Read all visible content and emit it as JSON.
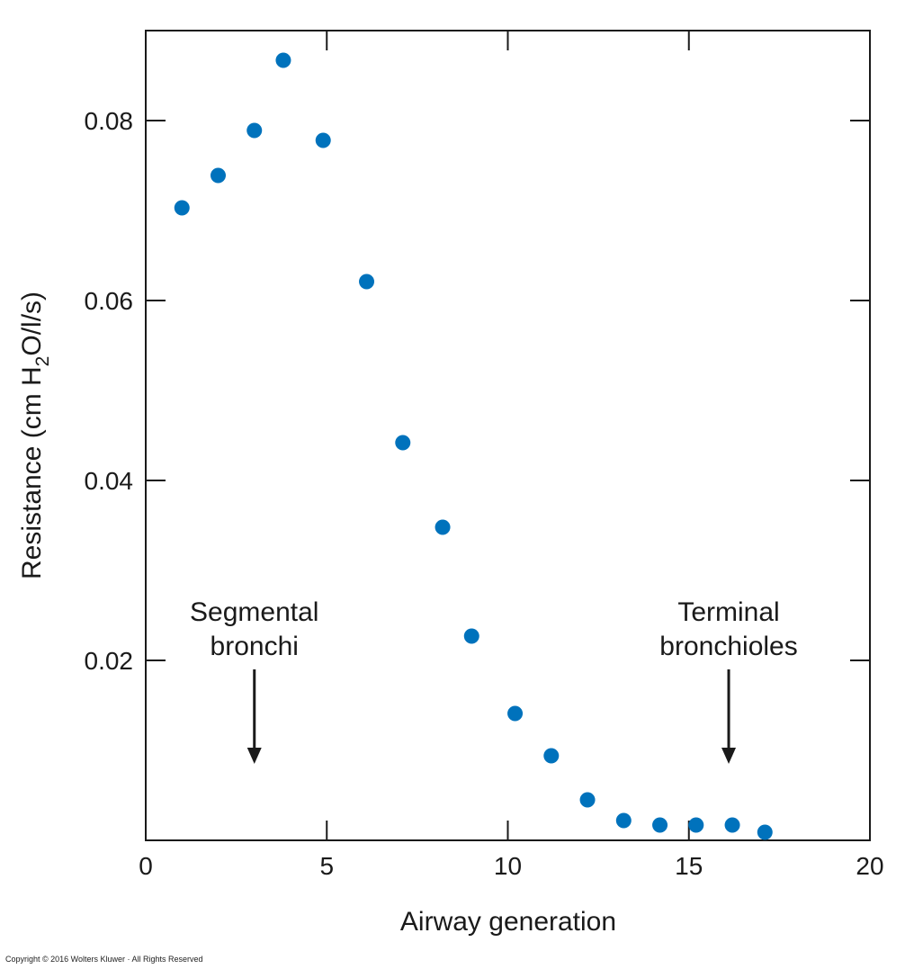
{
  "chart_data": {
    "type": "scatter",
    "xlabel": "Airway generation",
    "ylabel": {
      "before_sub": "Resistance (cm H",
      "sub": "2",
      "after_sub": "O/l/s)"
    },
    "xlim": [
      0,
      20
    ],
    "ylim": [
      0,
      0.09
    ],
    "xticks": [
      0,
      5,
      10,
      15,
      20
    ],
    "xtick_labels": [
      "0",
      "5",
      "10",
      "15",
      "20"
    ],
    "yticks": [
      0.02,
      0.04,
      0.06,
      0.08
    ],
    "ytick_labels": [
      "0.02",
      "0.04",
      "0.06",
      "0.08"
    ],
    "grid": false,
    "marker_color": "#0072bc",
    "points": [
      {
        "x": 1,
        "y": 0.0703
      },
      {
        "x": 2,
        "y": 0.0739
      },
      {
        "x": 3,
        "y": 0.0789
      },
      {
        "x": 3.8,
        "y": 0.0867
      },
      {
        "x": 4.9,
        "y": 0.0778
      },
      {
        "x": 6.1,
        "y": 0.0621
      },
      {
        "x": 7.1,
        "y": 0.0442
      },
      {
        "x": 8.2,
        "y": 0.0348
      },
      {
        "x": 9,
        "y": 0.0227
      },
      {
        "x": 10.2,
        "y": 0.0141
      },
      {
        "x": 11.2,
        "y": 0.0094
      },
      {
        "x": 12.2,
        "y": 0.0045
      },
      {
        "x": 13.2,
        "y": 0.0022
      },
      {
        "x": 14.2,
        "y": 0.0017
      },
      {
        "x": 15.2,
        "y": 0.0017
      },
      {
        "x": 16.2,
        "y": 0.0017
      },
      {
        "x": 17.1,
        "y": 0.0009
      }
    ],
    "annotations": [
      {
        "lines": [
          "Segmental",
          "bronchi"
        ],
        "x": 3,
        "arrow_to_y": 0.0085
      },
      {
        "lines": [
          "Terminal",
          "bronchioles"
        ],
        "x": 16.1,
        "arrow_to_y": 0.0085
      }
    ]
  },
  "copyright": "Copyright © 2016 Wolters Kluwer · All Rights Reserved"
}
